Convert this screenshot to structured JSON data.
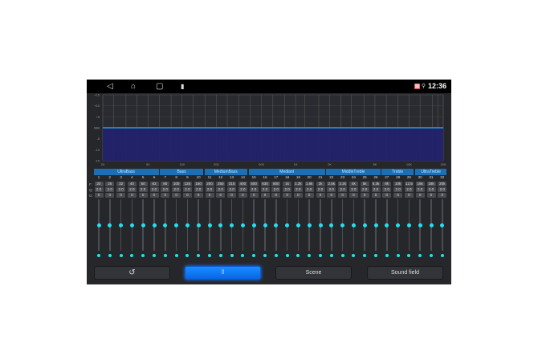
{
  "status_bar": {
    "time": "12:36",
    "nav": {
      "back": "◁",
      "home": "⌂",
      "recents": "▢",
      "app": "▮"
    },
    "icons": [
      "notification-icon",
      "location-icon"
    ]
  },
  "graph": {
    "y_labels": [
      "+15",
      "+10",
      "+5",
      "0dB",
      "-5",
      "-10",
      "-15"
    ],
    "x_labels": [
      "20",
      "50",
      "100",
      "200",
      "500",
      "1K",
      "2K",
      "5K",
      "10K",
      "20K"
    ],
    "line_color": "#2ab8ef",
    "fill_color": "#20216e",
    "level_db": 0
  },
  "bands": [
    {
      "name": "UltraBass",
      "from": 1,
      "to": 6
    },
    {
      "name": "Bass",
      "from": 7,
      "to": 10
    },
    {
      "name": "MediumBass",
      "from": 11,
      "to": 14
    },
    {
      "name": "Mediant",
      "from": 15,
      "to": 21
    },
    {
      "name": "MiddleTreble",
      "from": 22,
      "to": 26
    },
    {
      "name": "Treble",
      "from": 27,
      "to": 29
    },
    {
      "name": "UltraTreble",
      "from": 30,
      "to": 32
    }
  ],
  "row_labels": {
    "f": "F:",
    "q": "Q:",
    "g": "G:"
  },
  "channels": [
    {
      "n": "1",
      "f": "20",
      "q": "2.0",
      "g": "0"
    },
    {
      "n": "2",
      "f": "25",
      "q": "2.0",
      "g": "0"
    },
    {
      "n": "3",
      "f": "32",
      "q": "2.0",
      "g": "0"
    },
    {
      "n": "4",
      "f": "40",
      "q": "2.0",
      "g": "0"
    },
    {
      "n": "5",
      "f": "50",
      "q": "2.0",
      "g": "0"
    },
    {
      "n": "6",
      "f": "63",
      "q": "2.0",
      "g": "0"
    },
    {
      "n": "7",
      "f": "80",
      "q": "2.0",
      "g": "0"
    },
    {
      "n": "8",
      "f": "100",
      "q": "2.0",
      "g": "0"
    },
    {
      "n": "9",
      "f": "125",
      "q": "2.0",
      "g": "0"
    },
    {
      "n": "10",
      "f": "160",
      "q": "2.0",
      "g": "0"
    },
    {
      "n": "11",
      "f": "200",
      "q": "2.0",
      "g": "0"
    },
    {
      "n": "12",
      "f": "250",
      "q": "2.0",
      "g": "0"
    },
    {
      "n": "13",
      "f": "315",
      "q": "2.0",
      "g": "0"
    },
    {
      "n": "14",
      "f": "400",
      "q": "2.0",
      "g": "0"
    },
    {
      "n": "15",
      "f": "500",
      "q": "2.0",
      "g": "0"
    },
    {
      "n": "16",
      "f": "630",
      "q": "2.0",
      "g": "0"
    },
    {
      "n": "17",
      "f": "800",
      "q": "2.0",
      "g": "0"
    },
    {
      "n": "18",
      "f": "1k",
      "q": "2.0",
      "g": "0"
    },
    {
      "n": "19",
      "f": "1.2k",
      "q": "2.0",
      "g": "0"
    },
    {
      "n": "20",
      "f": "1.6k",
      "q": "2.0",
      "g": "0"
    },
    {
      "n": "21",
      "f": "2k",
      "q": "2.0",
      "g": "0"
    },
    {
      "n": "22",
      "f": "2.5k",
      "q": "2.0",
      "g": "0"
    },
    {
      "n": "23",
      "f": "3.1k",
      "q": "2.0",
      "g": "0"
    },
    {
      "n": "24",
      "f": "4k",
      "q": "2.0",
      "g": "0"
    },
    {
      "n": "25",
      "f": "5k",
      "q": "2.0",
      "g": "0"
    },
    {
      "n": "26",
      "f": "6.3k",
      "q": "2.0",
      "g": "0"
    },
    {
      "n": "27",
      "f": "8k",
      "q": "2.0",
      "g": "0"
    },
    {
      "n": "28",
      "f": "10k",
      "q": "2.0",
      "g": "0"
    },
    {
      "n": "29",
      "f": "12.5",
      "q": "2.0",
      "g": "0"
    },
    {
      "n": "30",
      "f": "16k",
      "q": "2.0",
      "g": "0"
    },
    {
      "n": "31",
      "f": "18k",
      "q": "2.0",
      "g": "0"
    },
    {
      "n": "32",
      "f": "20k",
      "q": "2.0",
      "g": "0"
    }
  ],
  "buttons": {
    "reset_icon": "↺",
    "eq_icon": "⫶⫶",
    "scene": "Scene",
    "sound_field": "Sound field"
  },
  "accent": "#22e0f0"
}
